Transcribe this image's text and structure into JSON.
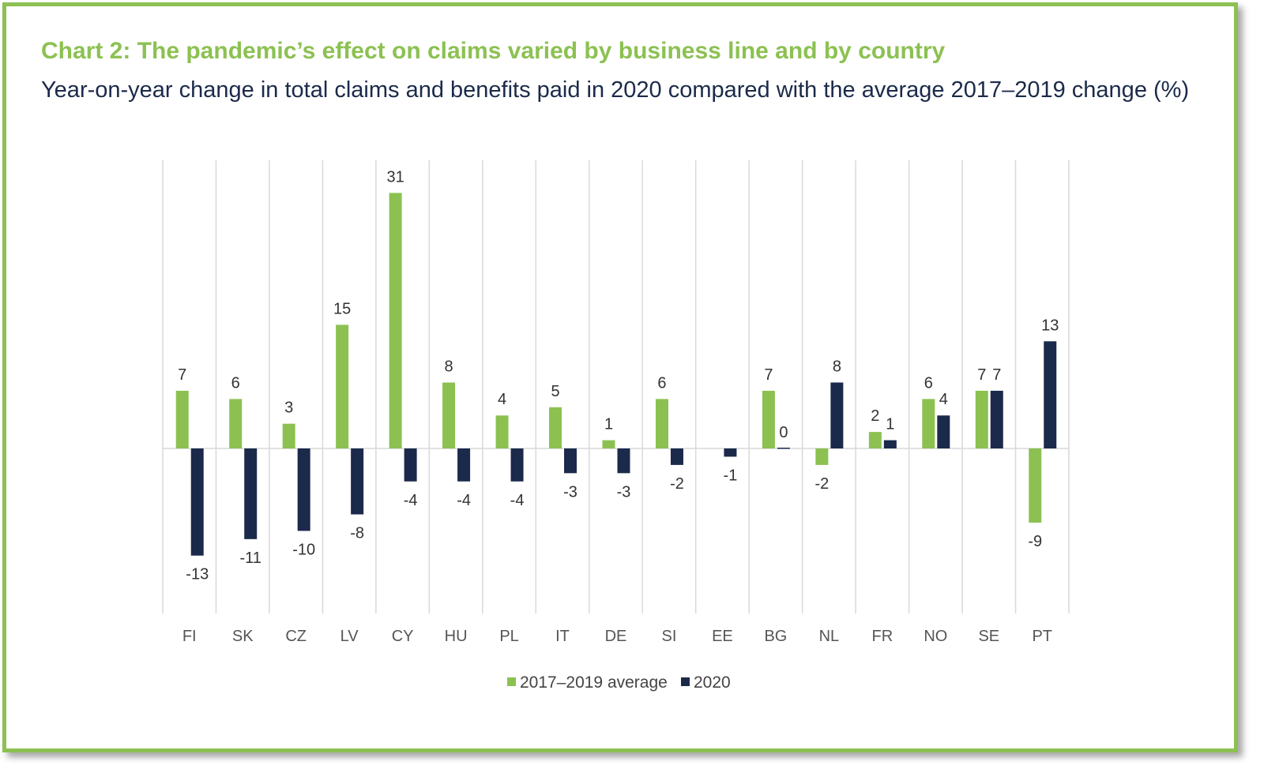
{
  "title": "Chart 2: The pandemic’s effect on claims varied by business line and by country",
  "subtitle": "Year-on-year change in total claims and benefits paid in 2020 compared with the average 2017–2019 change (%)",
  "colors": {
    "frame": "#8cc152",
    "series_2017_2019": "#8cc152",
    "series_2020": "#1b2a4a",
    "title": "#8cc152",
    "subtitle": "#1b2a4a"
  },
  "chart_data": {
    "type": "bar",
    "categories": [
      "FI",
      "SK",
      "CZ",
      "LV",
      "CY",
      "HU",
      "PL",
      "IT",
      "DE",
      "SI",
      "EE",
      "BG",
      "NL",
      "FR",
      "NO",
      "SE",
      "PT"
    ],
    "series": [
      {
        "name": "2017–2019 average",
        "values": [
          7,
          6,
          3,
          15,
          31,
          8,
          4,
          5,
          1,
          6,
          null,
          7,
          -2,
          2,
          6,
          7,
          -9
        ]
      },
      {
        "name": "2020",
        "values": [
          -13,
          -11,
          -10,
          -8,
          -4,
          -4,
          -4,
          -3,
          -3,
          -2,
          -1,
          0,
          8,
          1,
          4,
          7,
          13
        ]
      }
    ],
    "ylim": [
      -16,
      33
    ],
    "grid": "vertical separators",
    "legend": "bottom-center"
  }
}
